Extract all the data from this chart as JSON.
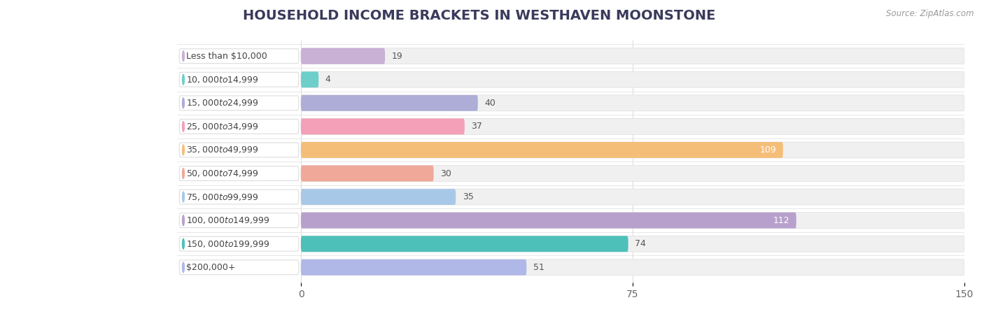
{
  "title": "HOUSEHOLD INCOME BRACKETS IN WESTHAVEN MOONSTONE",
  "source": "Source: ZipAtlas.com",
  "categories": [
    "Less than $10,000",
    "$10,000 to $14,999",
    "$15,000 to $24,999",
    "$25,000 to $34,999",
    "$35,000 to $49,999",
    "$50,000 to $74,999",
    "$75,000 to $99,999",
    "$100,000 to $149,999",
    "$150,000 to $199,999",
    "$200,000+"
  ],
  "values": [
    19,
    4,
    40,
    37,
    109,
    30,
    35,
    112,
    74,
    51
  ],
  "bar_colors": [
    "#c9b0d5",
    "#6ecfca",
    "#adadd8",
    "#f4a0b8",
    "#f5be78",
    "#f0a898",
    "#a8c8e8",
    "#b8a0cc",
    "#4ec0ba",
    "#b0b8e8"
  ],
  "xlim": [
    0,
    150
  ],
  "xticks": [
    0,
    75,
    150
  ],
  "label_inside_threshold": 80,
  "background_color": "#ffffff",
  "bar_bg_color": "#f0f0f0",
  "title_fontsize": 14,
  "tick_fontsize": 10,
  "bar_label_fontsize": 9,
  "category_fontsize": 9,
  "title_color": "#3a3a5c",
  "source_color": "#999999",
  "label_color_dark": "#555555",
  "label_color_light": "#ffffff",
  "grid_color": "#dddddd",
  "pill_color": "#ffffff",
  "pill_edge_color": "#dddddd"
}
